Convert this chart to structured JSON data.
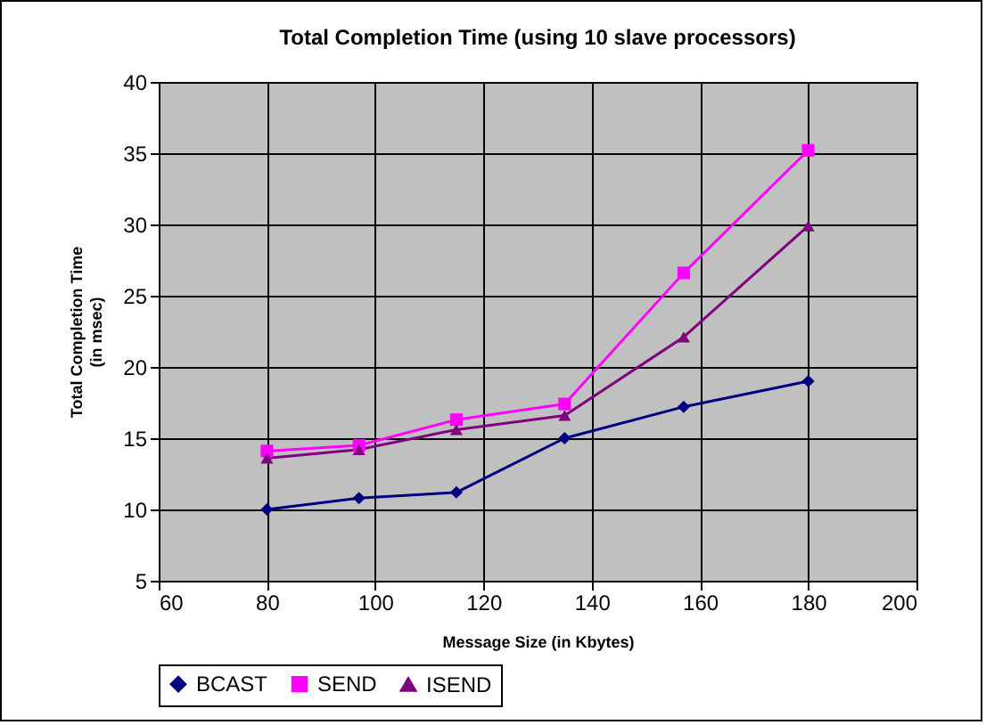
{
  "chart_data": {
    "type": "line",
    "title": "Total Completion Time (using 10 slave processors)",
    "xlabel": "Message Size (in Kbytes)",
    "ylabel": "Total Completion Time\n(in msec)",
    "x": [
      80,
      97,
      115,
      135,
      157,
      180
    ],
    "series": [
      {
        "name": "BCAST",
        "color": "#000080",
        "marker": "diamond",
        "values": [
          10,
          10.8,
          11.2,
          15,
          17.2,
          19
        ]
      },
      {
        "name": "SEND",
        "color": "#ff00ff",
        "marker": "square",
        "values": [
          14.1,
          14.5,
          16.3,
          17.4,
          26.6,
          35.2
        ]
      },
      {
        "name": "ISEND",
        "color": "#800080",
        "marker": "triangle",
        "values": [
          13.6,
          14.2,
          15.6,
          16.6,
          22.1,
          29.9
        ]
      }
    ],
    "xlim": [
      60,
      200
    ],
    "xticks": [
      60,
      80,
      100,
      120,
      140,
      160,
      180,
      200
    ],
    "ylim": [
      5,
      40
    ],
    "yticks": [
      5,
      10,
      15,
      20,
      25,
      30,
      35,
      40
    ],
    "grid": true,
    "legend": "bottom",
    "line_style": "solid"
  }
}
